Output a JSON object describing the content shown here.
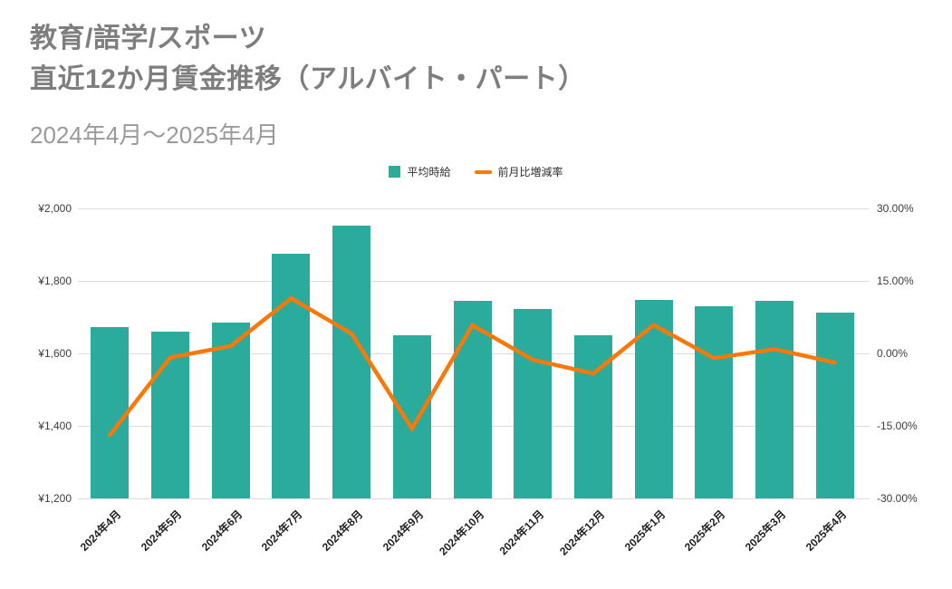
{
  "header": {
    "title_line1": "教育/語学/スポーツ",
    "title_line2": "直近12か月賃金推移（アルバイト・パート）",
    "subtitle": "2024年4月～2025年4月"
  },
  "legend": {
    "bar_label": "平均時給",
    "line_label": "前月比増減率"
  },
  "colors": {
    "bar": "#2aab9b",
    "line": "#f6790a",
    "grid": "#dcdcdc",
    "title_text": "#7e7e7e",
    "subtitle_text": "#9a9a9a",
    "axis_text": "#3c3c3c"
  },
  "chart_data": {
    "type": "bar",
    "subtype": "combo-bar-line-dual-axis",
    "title": "教育/語学/スポーツ 直近12か月賃金推移（アルバイト・パート）",
    "subtitle": "2024年4月～2025年4月",
    "categories": [
      "2024年4月",
      "2024年5月",
      "2024年6月",
      "2024年7月",
      "2024年8月",
      "2024年9月",
      "2024年10月",
      "2024年11月",
      "2024年12月",
      "2025年1月",
      "2025年2月",
      "2025年3月",
      "2025年4月"
    ],
    "series": [
      {
        "name": "平均時給",
        "type": "bar",
        "axis": "left",
        "unit": "JPY",
        "values": [
          1673,
          1659,
          1684,
          1876,
          1953,
          1649,
          1745,
          1722,
          1650,
          1747,
          1730,
          1745,
          1712
        ]
      },
      {
        "name": "前月比増減率",
        "type": "line",
        "axis": "right",
        "unit": "%",
        "values": [
          -16.88,
          -0.84,
          1.51,
          11.4,
          4.1,
          -15.57,
          5.82,
          -1.32,
          -4.18,
          5.88,
          -0.97,
          0.87,
          -1.89
        ]
      }
    ],
    "left_axis": {
      "min": 1200,
      "max": 2000,
      "ticks": [
        {
          "label": "¥2,000",
          "value": 2000
        },
        {
          "label": "¥1,800",
          "value": 1800
        },
        {
          "label": "¥1,600",
          "value": 1600
        },
        {
          "label": "¥1,400",
          "value": 1400
        },
        {
          "label": "¥1,200",
          "value": 1200
        }
      ]
    },
    "right_axis": {
      "min": -30,
      "max": 30,
      "ticks": [
        {
          "label": "30.00%",
          "value": 30
        },
        {
          "label": "15.00%",
          "value": 15
        },
        {
          "label": "0.00%",
          "value": 0
        },
        {
          "label": "-15.00%",
          "value": -15
        },
        {
          "label": "-30.00%",
          "value": -30
        }
      ]
    },
    "grid": true,
    "legend_position": "top-center",
    "xlabel": "",
    "ylabel": ""
  }
}
